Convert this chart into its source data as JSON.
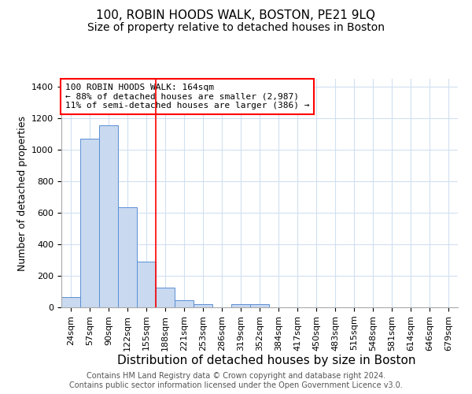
{
  "title": "100, ROBIN HOODS WALK, BOSTON, PE21 9LQ",
  "subtitle": "Size of property relative to detached houses in Boston",
  "xlabel": "Distribution of detached houses by size in Boston",
  "ylabel": "Number of detached properties",
  "categories": [
    "24sqm",
    "57sqm",
    "90sqm",
    "122sqm",
    "155sqm",
    "188sqm",
    "221sqm",
    "253sqm",
    "286sqm",
    "319sqm",
    "352sqm",
    "384sqm",
    "417sqm",
    "450sqm",
    "483sqm",
    "515sqm",
    "548sqm",
    "581sqm",
    "614sqm",
    "646sqm",
    "679sqm"
  ],
  "values": [
    65,
    1070,
    1155,
    635,
    290,
    125,
    45,
    20,
    0,
    20,
    20,
    0,
    0,
    0,
    0,
    0,
    0,
    0,
    0,
    0,
    0
  ],
  "bar_color": "#c8d9f0",
  "bar_edge_color": "#5b8fd4",
  "grid_color": "#d0e0f0",
  "background_color": "#ffffff",
  "vline_x": 4.5,
  "vline_color": "red",
  "annotation_text": "100 ROBIN HOODS WALK: 164sqm\n← 88% of detached houses are smaller (2,987)\n11% of semi-detached houses are larger (386) →",
  "annotation_box_color": "white",
  "annotation_box_edge_color": "red",
  "ylim": [
    0,
    1450
  ],
  "footer": "Contains HM Land Registry data © Crown copyright and database right 2024.\nContains public sector information licensed under the Open Government Licence v3.0.",
  "title_fontsize": 11,
  "subtitle_fontsize": 10,
  "xlabel_fontsize": 11,
  "ylabel_fontsize": 9,
  "tick_fontsize": 8,
  "annotation_fontsize": 8,
  "footer_fontsize": 7
}
